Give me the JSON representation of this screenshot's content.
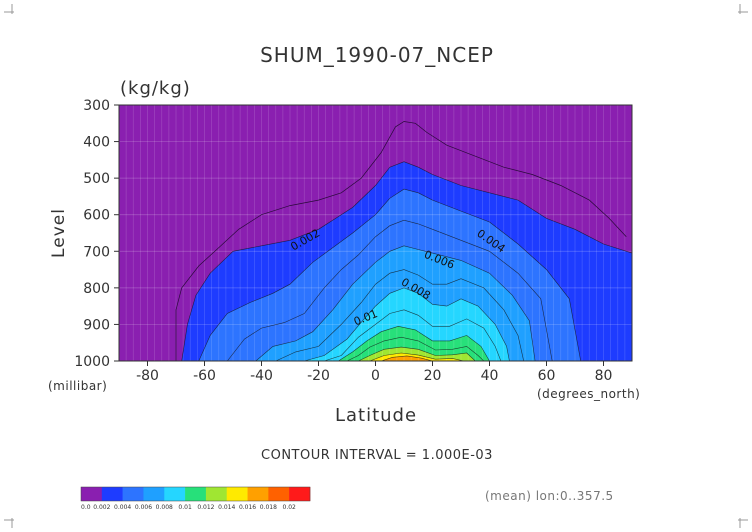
{
  "chart_data": {
    "type": "heatmap",
    "title": "SHUM_1990-07_NCEP",
    "units_label": "(kg/kg)",
    "xlabel": "Latitude",
    "ylabel": "Level",
    "x_units": "(degrees_north)",
    "y_units": "(millibar)",
    "xlim": [
      -90,
      90
    ],
    "ylim": [
      300,
      1000
    ],
    "y_reversed": true,
    "x_ticks": [
      -80,
      -60,
      -40,
      -20,
      0,
      20,
      40,
      60,
      80
    ],
    "y_ticks": [
      300,
      400,
      500,
      600,
      700,
      800,
      900,
      1000
    ],
    "contour_interval_text": "CONTOUR INTERVAL = 1.000E-03",
    "footnote": "(mean) lon:0..357.5",
    "contour_labels": [
      "0.002",
      "0.004",
      "0.006",
      "0.008",
      "0.01"
    ],
    "colorbar": {
      "levels": [
        "0.0",
        "0.002",
        "0.004",
        "0.006",
        "0.008",
        "0.01",
        "0.012",
        "0.014",
        "0.016",
        "0.018",
        "0.02"
      ],
      "colors": [
        "#8a1fb0",
        "#1e3cff",
        "#2d74ff",
        "#1fa0ff",
        "#25d6ff",
        "#27e07a",
        "#a0e632",
        "#ffea00",
        "#ffa000",
        "#ff6100",
        "#ff1a1a"
      ]
    },
    "background_color": "#8a1fb0",
    "series": [
      {
        "threshold": 0.002,
        "points": [
          [
            -68,
            1000
          ],
          [
            -66,
            900
          ],
          [
            -63,
            820
          ],
          [
            -58,
            760
          ],
          [
            -50,
            700
          ],
          [
            -40,
            685
          ],
          [
            -30,
            670
          ],
          [
            -20,
            640
          ],
          [
            -14,
            610
          ],
          [
            -8,
            580
          ],
          [
            0,
            520
          ],
          [
            5,
            470
          ],
          [
            10,
            455
          ],
          [
            15,
            470
          ],
          [
            20,
            490
          ],
          [
            30,
            520
          ],
          [
            40,
            540
          ],
          [
            50,
            560
          ],
          [
            60,
            610
          ],
          [
            70,
            640
          ],
          [
            80,
            680
          ],
          [
            90,
            705
          ],
          [
            90,
            1000
          ]
        ]
      },
      {
        "threshold": 0.003,
        "points": [
          [
            -62,
            1000
          ],
          [
            -58,
            930
          ],
          [
            -52,
            870
          ],
          [
            -44,
            840
          ],
          [
            -36,
            815
          ],
          [
            -30,
            790
          ],
          [
            -22,
            730
          ],
          [
            -15,
            690
          ],
          [
            -8,
            650
          ],
          [
            0,
            600
          ],
          [
            5,
            555
          ],
          [
            10,
            530
          ],
          [
            15,
            540
          ],
          [
            20,
            560
          ],
          [
            30,
            590
          ],
          [
            40,
            620
          ],
          [
            50,
            680
          ],
          [
            60,
            750
          ],
          [
            68,
            830
          ],
          [
            72,
            1000
          ]
        ]
      },
      {
        "threshold": 0.004,
        "points": [
          [
            -52,
            1000
          ],
          [
            -46,
            940
          ],
          [
            -40,
            910
          ],
          [
            -32,
            895
          ],
          [
            -25,
            870
          ],
          [
            -18,
            800
          ],
          [
            -12,
            750
          ],
          [
            -6,
            710
          ],
          [
            0,
            660
          ],
          [
            5,
            630
          ],
          [
            10,
            615
          ],
          [
            15,
            625
          ],
          [
            20,
            640
          ],
          [
            30,
            670
          ],
          [
            40,
            700
          ],
          [
            50,
            760
          ],
          [
            58,
            830
          ],
          [
            62,
            1000
          ]
        ]
      },
      {
        "threshold": 0.005,
        "points": [
          [
            -42,
            1000
          ],
          [
            -36,
            960
          ],
          [
            -28,
            945
          ],
          [
            -22,
            920
          ],
          [
            -15,
            860
          ],
          [
            -8,
            790
          ],
          [
            0,
            730
          ],
          [
            5,
            700
          ],
          [
            10,
            685
          ],
          [
            15,
            695
          ],
          [
            20,
            705
          ],
          [
            30,
            725
          ],
          [
            40,
            760
          ],
          [
            48,
            820
          ],
          [
            54,
            890
          ],
          [
            56,
            1000
          ]
        ]
      },
      {
        "threshold": 0.006,
        "points": [
          [
            -35,
            1000
          ],
          [
            -28,
            975
          ],
          [
            -20,
            960
          ],
          [
            -12,
            900
          ],
          [
            -5,
            840
          ],
          [
            0,
            790
          ],
          [
            5,
            760
          ],
          [
            10,
            750
          ],
          [
            15,
            765
          ],
          [
            20,
            790
          ],
          [
            25,
            790
          ],
          [
            30,
            775
          ],
          [
            38,
            800
          ],
          [
            45,
            860
          ],
          [
            50,
            930
          ],
          [
            52,
            1000
          ]
        ]
      },
      {
        "threshold": 0.007,
        "points": [
          [
            -25,
            1000
          ],
          [
            -18,
            985
          ],
          [
            -10,
            940
          ],
          [
            -4,
            885
          ],
          [
            0,
            850
          ],
          [
            5,
            815
          ],
          [
            10,
            800
          ],
          [
            15,
            815
          ],
          [
            20,
            845
          ],
          [
            25,
            850
          ],
          [
            30,
            830
          ],
          [
            36,
            850
          ],
          [
            42,
            900
          ],
          [
            46,
            960
          ],
          [
            47,
            1000
          ]
        ]
      },
      {
        "threshold": 0.008,
        "points": [
          [
            -18,
            1000
          ],
          [
            -12,
            985
          ],
          [
            -6,
            935
          ],
          [
            0,
            900
          ],
          [
            5,
            870
          ],
          [
            10,
            860
          ],
          [
            15,
            875
          ],
          [
            20,
            905
          ],
          [
            26,
            905
          ],
          [
            32,
            885
          ],
          [
            38,
            910
          ],
          [
            42,
            960
          ],
          [
            44,
            1000
          ]
        ]
      },
      {
        "threshold": 0.009,
        "points": [
          [
            -13,
            1000
          ],
          [
            -8,
            975
          ],
          [
            -3,
            945
          ],
          [
            2,
            920
          ],
          [
            8,
            905
          ],
          [
            14,
            915
          ],
          [
            20,
            945
          ],
          [
            26,
            945
          ],
          [
            32,
            930
          ],
          [
            37,
            960
          ],
          [
            40,
            1000
          ]
        ]
      },
      {
        "threshold": 0.01,
        "points": [
          [
            -10,
            1000
          ],
          [
            -6,
            985
          ],
          [
            -2,
            962
          ],
          [
            3,
            945
          ],
          [
            9,
            935
          ],
          [
            15,
            945
          ],
          [
            21,
            970
          ],
          [
            27,
            968
          ],
          [
            32,
            960
          ],
          [
            36,
            985
          ],
          [
            38,
            1000
          ]
        ]
      },
      {
        "threshold": 0.012,
        "points": [
          [
            -6,
            1000
          ],
          [
            -2,
            985
          ],
          [
            3,
            968
          ],
          [
            9,
            962
          ],
          [
            15,
            968
          ],
          [
            21,
            985
          ],
          [
            27,
            983
          ],
          [
            32,
            978
          ],
          [
            35,
            1000
          ]
        ]
      },
      {
        "threshold": 0.014,
        "points": [
          [
            -2,
            1000
          ],
          [
            3,
            985
          ],
          [
            9,
            978
          ],
          [
            15,
            984
          ],
          [
            21,
            995
          ],
          [
            27,
            993
          ],
          [
            31,
            1000
          ]
        ]
      },
      {
        "threshold": 0.016,
        "points": [
          [
            2,
            1000
          ],
          [
            6,
            990
          ],
          [
            11,
            986
          ],
          [
            16,
            992
          ],
          [
            20,
            1000
          ]
        ]
      }
    ],
    "contour_lines": [
      {
        "value": 0.001,
        "points": [
          [
            -70,
            1000
          ],
          [
            -70,
            860
          ],
          [
            -68,
            800
          ],
          [
            -62,
            740
          ],
          [
            -55,
            690
          ],
          [
            -48,
            640
          ],
          [
            -40,
            600
          ],
          [
            -30,
            575
          ],
          [
            -20,
            560
          ],
          [
            -12,
            540
          ],
          [
            -5,
            500
          ],
          [
            2,
            430
          ],
          [
            7,
            360
          ],
          [
            10,
            345
          ],
          [
            14,
            350
          ],
          [
            18,
            375
          ],
          [
            25,
            410
          ],
          [
            35,
            440
          ],
          [
            45,
            470
          ],
          [
            55,
            490
          ],
          [
            65,
            520
          ],
          [
            75,
            560
          ],
          [
            82,
            610
          ],
          [
            88,
            660
          ]
        ]
      }
    ]
  }
}
